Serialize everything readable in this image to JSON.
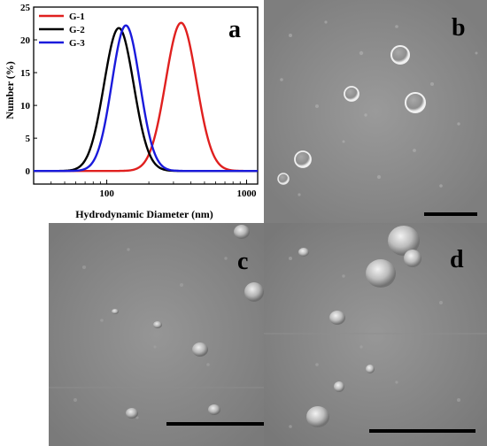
{
  "panels": {
    "a": {
      "letter": "a"
    },
    "b": {
      "letter": "b"
    },
    "c": {
      "letter": "c"
    },
    "d": {
      "letter": "d"
    }
  },
  "chart_data": {
    "type": "line",
    "title": "",
    "xlabel": "Hydrodynamic Diameter (nm)",
    "ylabel": "Number (%)",
    "xscale": "log",
    "xlim": [
      30,
      1200
    ],
    "ylim": [
      -2,
      25
    ],
    "xticks": [
      100,
      1000
    ],
    "xtick_labels": [
      "100",
      "1000"
    ],
    "yticks": [
      0,
      5,
      10,
      15,
      20,
      25
    ],
    "ytick_labels": [
      "0",
      "5",
      "10",
      "15",
      "20",
      "25"
    ],
    "legend_position": "top-left",
    "series": [
      {
        "name": "G-1",
        "color": "#e0201f",
        "peak_x": 340,
        "peak_y": 22.6,
        "x": [
          170,
          200,
          240,
          280,
          320,
          340,
          370,
          420,
          500,
          600,
          700,
          900
        ],
        "y": [
          0.2,
          1.5,
          7.5,
          16.5,
          22.0,
          22.6,
          21.5,
          16.5,
          8.0,
          2.5,
          0.6,
          0.0
        ]
      },
      {
        "name": "G-2",
        "color": "#000000",
        "peak_x": 122,
        "peak_y": 21.8,
        "x": [
          60,
          70,
          80,
          90,
          100,
          110,
          122,
          140,
          160,
          200,
          250,
          300,
          400
        ],
        "y": [
          0.0,
          0.8,
          3.0,
          8.0,
          14.0,
          19.5,
          21.8,
          19.5,
          14.0,
          6.0,
          2.0,
          0.6,
          0.0
        ]
      },
      {
        "name": "G-3",
        "color": "#1a1adc",
        "peak_x": 137,
        "peak_y": 22.2,
        "x": [
          70,
          80,
          90,
          100,
          110,
          120,
          137,
          155,
          180,
          220,
          260,
          320,
          420
        ],
        "y": [
          0.0,
          0.8,
          2.5,
          6.0,
          11.0,
          16.5,
          22.2,
          20.5,
          15.0,
          7.0,
          2.5,
          0.6,
          0.0
        ]
      }
    ]
  }
}
